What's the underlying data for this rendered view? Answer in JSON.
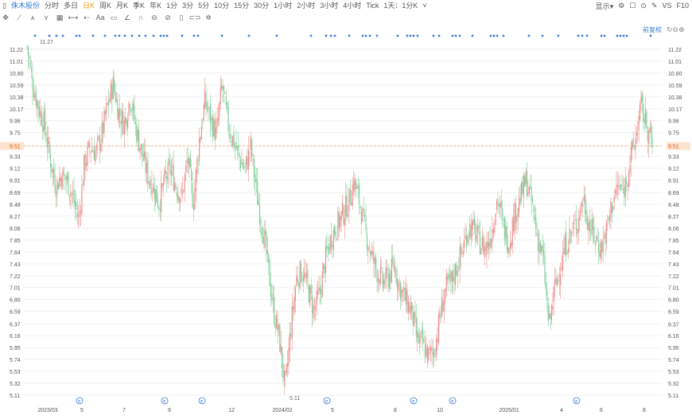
{
  "toolbar": {
    "stock_name": "侏木股份",
    "periods": [
      "分时",
      "多日",
      "日K",
      "周K",
      "月K",
      "季K",
      "年K",
      "1分",
      "3分",
      "5分",
      "10分",
      "15分",
      "30分",
      "1小时",
      "2小时",
      "3小时",
      "4小时",
      "Tick",
      "1天：1分K"
    ],
    "active_period": "日K",
    "display_label": "显示",
    "vs_label": "VS",
    "f10_label": "F10"
  },
  "rights_label": "前复权",
  "first_low_label": "11.27",
  "low_label": "5.11",
  "current_price": "9.51",
  "colors": {
    "up": "#f08f8f",
    "down": "#7fd19b",
    "accent": "#3a7bd5",
    "price_line": "#f5a37a"
  },
  "chart_data": {
    "type": "candlestick",
    "y_ticks": [
      "11.22",
      "11.01",
      "10.80",
      "10.59",
      "10.38",
      "10.17",
      "9.96",
      "9.75",
      "9.51",
      "9.33",
      "9.12",
      "8.91",
      "8.69",
      "8.48",
      "8.27",
      "8.06",
      "7.85",
      "7.64",
      "7.43",
      "7.22",
      "7.01",
      "6.80",
      "6.59",
      "6.37",
      "6.16",
      "5.95",
      "5.74",
      "5.53",
      "5.32",
      "5.11"
    ],
    "x_ticks": [
      "2023/03",
      "5",
      "7",
      "9",
      "12",
      "2024/02",
      "5",
      "8",
      "10",
      "2025/01",
      "4",
      "6",
      "8"
    ],
    "ylim": [
      5.11,
      11.22
    ],
    "close_path": [
      11.27,
      10.6,
      10.2,
      9.9,
      9.3,
      8.8,
      9.0,
      8.9,
      8.6,
      8.2,
      9.2,
      9.5,
      9.4,
      9.7,
      10.2,
      10.6,
      10.1,
      9.9,
      10.4,
      9.8,
      9.4,
      9.0,
      8.8,
      8.5,
      8.9,
      9.1,
      8.8,
      8.6,
      9.3,
      8.5,
      9.6,
      10.3,
      10.0,
      9.7,
      10.6,
      9.9,
      9.6,
      9.3,
      9.1,
      9.5,
      8.7,
      8.1,
      7.4,
      6.6,
      6.1,
      5.2,
      6.3,
      7.2,
      7.3,
      7.0,
      6.6,
      6.9,
      7.5,
      7.9,
      8.1,
      8.3,
      8.5,
      8.9,
      8.5,
      8.0,
      7.6,
      7.3,
      7.1,
      7.2,
      7.4,
      7.0,
      6.8,
      6.6,
      6.1,
      6.0,
      5.8,
      5.9,
      6.5,
      7.0,
      7.1,
      7.4,
      7.7,
      8.1,
      8.0,
      7.8,
      7.7,
      8.0,
      8.6,
      8.1,
      7.8,
      8.3,
      8.6,
      8.9,
      8.5,
      7.9,
      7.5,
      6.3,
      7.0,
      7.4,
      7.8,
      8.0,
      8.2,
      8.6,
      8.1,
      7.9,
      7.7,
      8.0,
      8.5,
      8.8,
      8.7,
      9.2,
      9.6,
      10.2,
      9.9,
      9.51
    ],
    "current_price": 9.51
  }
}
